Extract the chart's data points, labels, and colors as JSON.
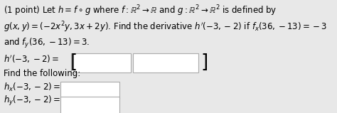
{
  "bg_color": "#e8e8e8",
  "box_color": "#ffffff",
  "line1": "(1 point) Let $h = f \\circ g$ where $f : \\mathbb{R}^2 \\rightarrow \\mathbb{R}$ and $g : \\mathbb{R}^2 \\rightarrow \\mathbb{R}^2$ is defined by",
  "line2": "$g(x, y) = (-2x^2y, 3x + 2y)$. Find the derivative $h^{\\prime}(-3, -2)$ if $f_x(36, -13) = -3$",
  "line3": "and $f_y(36, -13) = 3$.",
  "line4": "$h^{\\prime}(-3, -2) =$",
  "line5": "Find the following:",
  "line6": "$h_x(-3, -2) =$",
  "line7": "$h_y(-3, -2) =$",
  "font_size": 8.5,
  "small_font": 8.0
}
